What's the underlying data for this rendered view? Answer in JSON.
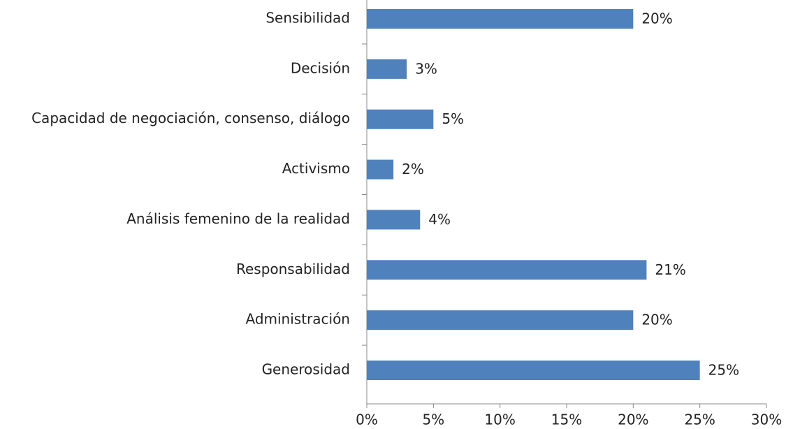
{
  "chart_data": {
    "type": "bar",
    "orientation": "horizontal",
    "categories": [
      "Sensibilidad",
      "Decisión",
      "Capacidad de negociación, consenso, diálogo",
      "Activismo",
      "Análisis femenino de la realidad",
      "Responsabilidad",
      "Administración",
      "Generosidad"
    ],
    "values": [
      20,
      3,
      5,
      2,
      4,
      21,
      20,
      25
    ],
    "value_labels": [
      "20%",
      "3%",
      "5%",
      "2%",
      "4%",
      "21%",
      "20%",
      "25%"
    ],
    "color": "#4f81bd",
    "xlim": [
      0,
      30
    ],
    "xticks": [
      {
        "value": 0,
        "label": "0%"
      },
      {
        "value": 5,
        "label": "5%"
      },
      {
        "value": 10,
        "label": "10%"
      },
      {
        "value": 15,
        "label": "15%"
      },
      {
        "value": 20,
        "label": "20%"
      },
      {
        "value": 25,
        "label": "25%"
      },
      {
        "value": 30,
        "label": "30%"
      }
    ],
    "grid": false
  }
}
